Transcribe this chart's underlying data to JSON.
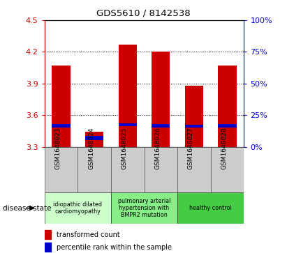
{
  "title": "GDS5610 / 8142538",
  "categories": [
    "GSM1648023",
    "GSM1648024",
    "GSM1648025",
    "GSM1648026",
    "GSM1648027",
    "GSM1648028"
  ],
  "bar_bottom": 3.3,
  "red_tops": [
    4.07,
    3.44,
    4.27,
    4.2,
    3.88,
    4.07
  ],
  "blue_bottoms": [
    3.485,
    3.36,
    3.495,
    3.485,
    3.48,
    3.485
  ],
  "blue_tops": [
    3.515,
    3.4,
    3.525,
    3.515,
    3.51,
    3.515
  ],
  "ylim": [
    3.3,
    4.5
  ],
  "yticks_left": [
    3.3,
    3.6,
    3.9,
    4.2,
    4.5
  ],
  "yticks_right": [
    0,
    25,
    50,
    75,
    100
  ],
  "right_tick_labels": [
    "0%",
    "25%",
    "50%",
    "75%",
    "100%"
  ],
  "red_color": "#cc0000",
  "blue_color": "#0000cc",
  "grid_color": "#000000",
  "bar_width": 0.55,
  "disease_groups": [
    {
      "label": "idiopathic dilated\ncardiomyopathy",
      "start": 0,
      "end": 2,
      "color": "#ccffcc"
    },
    {
      "label": "pulmonary arterial\nhypertension with\nBMPR2 mutation",
      "start": 2,
      "end": 4,
      "color": "#88ee88"
    },
    {
      "label": "healthy control",
      "start": 4,
      "end": 6,
      "color": "#44cc44"
    }
  ],
  "legend_red": "transformed count",
  "legend_blue": "percentile rank within the sample",
  "disease_state_label": "disease state",
  "left_tick_color": "#cc0000",
  "right_tick_color": "#0000cc",
  "xtick_bg_color": "#cccccc",
  "xtick_separator_color": "#555555"
}
